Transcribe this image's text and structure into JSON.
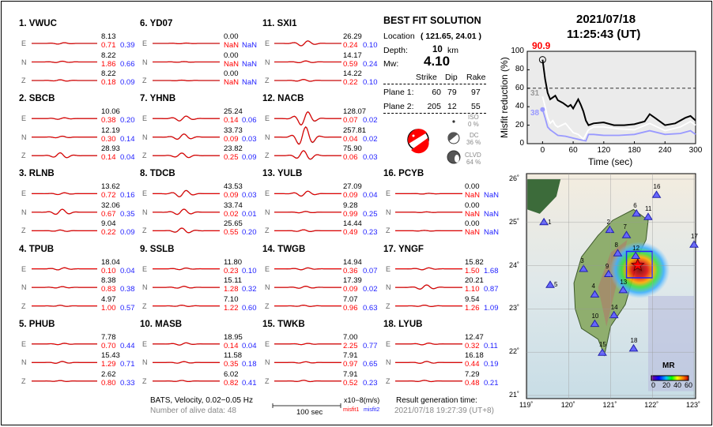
{
  "stations": [
    {
      "label": "1.  VWUC",
      "comps": [
        {
          "c": "E",
          "amp": "8.13",
          "m1": "0.71",
          "m2": "0.39"
        },
        {
          "c": "N",
          "amp": "8.22",
          "m1": "1.86",
          "m2": "0.66"
        },
        {
          "c": "Z",
          "amp": "8.22",
          "m1": "0.18",
          "m2": "0.09"
        }
      ]
    },
    {
      "label": "2.  SBCB",
      "comps": [
        {
          "c": "E",
          "amp": "10.06",
          "m1": "0.38",
          "m2": "0.20"
        },
        {
          "c": "N",
          "amp": "12.19",
          "m1": "0.30",
          "m2": "0.14"
        },
        {
          "c": "Z",
          "amp": "28.93",
          "m1": "0.14",
          "m2": "0.04"
        }
      ]
    },
    {
      "label": "3.  RLNB",
      "comps": [
        {
          "c": "E",
          "amp": "13.62",
          "m1": "0.72",
          "m2": "0.16"
        },
        {
          "c": "N",
          "amp": "32.06",
          "m1": "0.67",
          "m2": "0.35"
        },
        {
          "c": "Z",
          "amp": "9.04",
          "m1": "0.22",
          "m2": "0.09"
        }
      ]
    },
    {
      "label": "4.  TPUB",
      "comps": [
        {
          "c": "E",
          "amp": "18.04",
          "m1": "0.10",
          "m2": "0.04"
        },
        {
          "c": "N",
          "amp": "8.38",
          "m1": "0.83",
          "m2": "0.38"
        },
        {
          "c": "Z",
          "amp": "4.97",
          "m1": "1.00",
          "m2": "0.57"
        }
      ]
    },
    {
      "label": "5.  PHUB",
      "comps": [
        {
          "c": "E",
          "amp": "7.78",
          "m1": "0.70",
          "m2": "0.44"
        },
        {
          "c": "N",
          "amp": "15.43",
          "m1": "1.29",
          "m2": "0.71"
        },
        {
          "c": "Z",
          "amp": "2.62",
          "m1": "0.80",
          "m2": "0.33"
        }
      ]
    },
    {
      "label": "6.  YD07",
      "comps": [
        {
          "c": "E",
          "amp": "0.00",
          "m1": "NaN",
          "m2": "NaN"
        },
        {
          "c": "N",
          "amp": "0.00",
          "m1": "NaN",
          "m2": "NaN"
        },
        {
          "c": "Z",
          "amp": "0.00",
          "m1": "NaN",
          "m2": "NaN"
        }
      ]
    },
    {
      "label": "7.  YHNB",
      "comps": [
        {
          "c": "E",
          "amp": "25.24",
          "m1": "0.14",
          "m2": "0.06"
        },
        {
          "c": "N",
          "amp": "33.73",
          "m1": "0.09",
          "m2": "0.03"
        },
        {
          "c": "Z",
          "amp": "23.82",
          "m1": "0.25",
          "m2": "0.09"
        }
      ]
    },
    {
      "label": "8.  TDCB",
      "comps": [
        {
          "c": "E",
          "amp": "43.53",
          "m1": "0.09",
          "m2": "0.03"
        },
        {
          "c": "N",
          "amp": "33.74",
          "m1": "0.02",
          "m2": "0.01"
        },
        {
          "c": "Z",
          "amp": "25.65",
          "m1": "0.55",
          "m2": "0.20"
        }
      ]
    },
    {
      "label": "9.  SSLB",
      "comps": [
        {
          "c": "E",
          "amp": "11.80",
          "m1": "0.23",
          "m2": "0.10"
        },
        {
          "c": "N",
          "amp": "15.11",
          "m1": "1.28",
          "m2": "0.32"
        },
        {
          "c": "Z",
          "amp": "7.10",
          "m1": "1.22",
          "m2": "0.60"
        }
      ]
    },
    {
      "label": "10. MASB",
      "comps": [
        {
          "c": "E",
          "amp": "18.95",
          "m1": "0.14",
          "m2": "0.04"
        },
        {
          "c": "N",
          "amp": "11.58",
          "m1": "0.35",
          "m2": "0.18"
        },
        {
          "c": "Z",
          "amp": "6.02",
          "m1": "0.82",
          "m2": "0.41"
        }
      ]
    },
    {
      "label": "11. SXI1",
      "comps": [
        {
          "c": "E",
          "amp": "26.29",
          "m1": "0.24",
          "m2": "0.10"
        },
        {
          "c": "N",
          "amp": "14.17",
          "m1": "0.59",
          "m2": "0.24"
        },
        {
          "c": "Z",
          "amp": "14.22",
          "m1": "0.22",
          "m2": "0.10"
        }
      ]
    },
    {
      "label": "12. NACB",
      "comps": [
        {
          "c": "E",
          "amp": "128.07",
          "m1": "0.07",
          "m2": "0.02"
        },
        {
          "c": "N",
          "amp": "257.81",
          "m1": "0.04",
          "m2": "0.02"
        },
        {
          "c": "Z",
          "amp": "75.90",
          "m1": "0.06",
          "m2": "0.03"
        }
      ]
    },
    {
      "label": "13. YULB",
      "comps": [
        {
          "c": "E",
          "amp": "27.09",
          "m1": "0.09",
          "m2": "0.04"
        },
        {
          "c": "N",
          "amp": "9.28",
          "m1": "0.99",
          "m2": "0.25"
        },
        {
          "c": "Z",
          "amp": "14.44",
          "m1": "0.49",
          "m2": "0.23"
        }
      ]
    },
    {
      "label": "14. TWGB",
      "comps": [
        {
          "c": "E",
          "amp": "14.94",
          "m1": "0.36",
          "m2": "0.07"
        },
        {
          "c": "N",
          "amp": "17.39",
          "m1": "0.09",
          "m2": "0.02"
        },
        {
          "c": "Z",
          "amp": "7.07",
          "m1": "0.96",
          "m2": "0.63"
        }
      ]
    },
    {
      "label": "15. TWKB",
      "comps": [
        {
          "c": "E",
          "amp": "7.00",
          "m1": "2.25",
          "m2": "0.77"
        },
        {
          "c": "N",
          "amp": "7.91",
          "m1": "0.97",
          "m2": "0.65"
        },
        {
          "c": "Z",
          "amp": "7.91",
          "m1": "0.52",
          "m2": "0.23"
        }
      ]
    },
    {
      "label": "16. PCYB",
      "comps": [
        {
          "c": "E",
          "amp": "0.00",
          "m1": "NaN",
          "m2": "NaN"
        },
        {
          "c": "N",
          "amp": "0.00",
          "m1": "NaN",
          "m2": "NaN"
        },
        {
          "c": "Z",
          "amp": "0.00",
          "m1": "NaN",
          "m2": "NaN"
        }
      ]
    },
    {
      "label": "17. YNGF",
      "comps": [
        {
          "c": "E",
          "amp": "15.82",
          "m1": "1.50",
          "m2": "1.68"
        },
        {
          "c": "N",
          "amp": "20.21",
          "m1": "1.10",
          "m2": "0.87"
        },
        {
          "c": "Z",
          "amp": "9.54",
          "m1": "1.26",
          "m2": "1.09"
        }
      ]
    },
    {
      "label": "18. LYUB",
      "comps": [
        {
          "c": "E",
          "amp": "12.47",
          "m1": "0.32",
          "m2": "0.11"
        },
        {
          "c": "N",
          "amp": "16.18",
          "m1": "0.44",
          "m2": "0.19"
        },
        {
          "c": "Z",
          "amp": "7.29",
          "m1": "0.48",
          "m2": "0.21"
        }
      ]
    }
  ],
  "solution": {
    "title": "BEST FIT SOLUTION",
    "location_label": "Location",
    "location_value": "( 121.65,  24.01 )",
    "depth_label": "Depth:",
    "depth_value": "10",
    "depth_unit": "km",
    "mw_label": "Mw:",
    "mw_value": "4.10",
    "headers": [
      "Strike",
      "Dip",
      "Rake"
    ],
    "planes": [
      {
        "label": "Plane 1:",
        "values": [
          "60",
          "79",
          "97"
        ]
      },
      {
        "label": "Plane 2:",
        "values": [
          "205",
          "12",
          "55"
        ]
      }
    ],
    "iso_label": "ISO",
    "iso_value": "0 %",
    "dc_label": "DC",
    "dc_value": "36 %",
    "clvd_label": "CLVD",
    "clvd_value": "64 %"
  },
  "footer": {
    "filter": "BATS, Velocity, 0.02−0.05 Hz",
    "alive": "Number of alive data: 48",
    "scale": "100 sec",
    "units": "x10−8(m/s)",
    "misfit1": "misfit1",
    "misfit2": "misfit2",
    "gen_label": "Result generation time:",
    "gen_time": "2021/07/18 19:27:39 (UT+8)"
  },
  "header": {
    "date": "2021/07/18",
    "time": "11:25:43  (UT)"
  },
  "colors": {
    "synthetic": "#ff0000",
    "observed": "#000000",
    "misfit2": "#2222ff",
    "best_line": "#000000",
    "mid_line": "#ffffff",
    "low_line": "#9999ff"
  },
  "chart_data": {
    "type": "line",
    "xlabel": "Time (sec)",
    "ylabel": "Misfit reduction (%)",
    "xlim": [
      -30,
      300
    ],
    "ylim": [
      0,
      100
    ],
    "xticks": [
      "0",
      "60",
      "120",
      "180",
      "240",
      "300"
    ],
    "yticks": [
      "0",
      "20",
      "40",
      "60",
      "80",
      "100"
    ],
    "threshold": 60,
    "peak_label": "90.9",
    "annotations": [
      "31",
      "38"
    ],
    "series": [
      {
        "x": [
          0,
          5,
          10,
          15,
          20,
          25,
          30,
          40,
          50,
          55,
          60,
          70,
          75,
          80,
          85,
          90,
          100,
          120,
          140,
          160,
          180,
          200,
          210,
          220,
          240,
          260,
          280,
          290,
          300
        ],
        "y": [
          90.9,
          70,
          55,
          48,
          50,
          52,
          47,
          44,
          40,
          42,
          38,
          48,
          42,
          35,
          25,
          20,
          22,
          23,
          20,
          20,
          21,
          24,
          32,
          28,
          20,
          22,
          28,
          30,
          25
        ]
      },
      {
        "x": [
          0,
          5,
          10,
          15,
          20,
          25,
          30,
          45,
          60,
          70,
          80,
          90,
          100,
          120,
          150,
          180,
          210,
          240,
          270,
          290,
          300
        ],
        "y": [
          51,
          40,
          28,
          22,
          25,
          20,
          18,
          22,
          12,
          10,
          5,
          15,
          18,
          18,
          16,
          15,
          22,
          14,
          18,
          24,
          20
        ]
      },
      {
        "x": [
          0,
          5,
          10,
          15,
          20,
          30,
          45,
          60,
          75,
          85,
          90,
          100,
          120,
          150,
          180,
          210,
          240,
          270,
          290,
          300
        ],
        "y": [
          37,
          28,
          18,
          15,
          13,
          9,
          8,
          6,
          4,
          3,
          10,
          10,
          9,
          9,
          10,
          14,
          10,
          11,
          14,
          10
        ]
      }
    ]
  },
  "map": {
    "lon_ticks": [
      "119˚",
      "120˚",
      "121˚",
      "122˚",
      "123˚"
    ],
    "lat_ticks": [
      "21˚",
      "22˚",
      "23˚",
      "24˚",
      "25˚",
      "26˚"
    ],
    "colorbar_title": "MR",
    "colorbar_ticks": [
      "0",
      "20",
      "40",
      "60"
    ],
    "stations": [
      {
        "id": "1",
        "lon": 119.4,
        "lat": 25.0
      },
      {
        "id": "2",
        "lon": 120.98,
        "lat": 24.82
      },
      {
        "id": "3",
        "lon": 120.35,
        "lat": 23.92
      },
      {
        "id": "4",
        "lon": 120.62,
        "lat": 23.33
      },
      {
        "id": "5",
        "lon": 119.55,
        "lat": 23.55
      },
      {
        "id": "6",
        "lon": 121.62,
        "lat": 25.2
      },
      {
        "id": "7",
        "lon": 121.38,
        "lat": 24.7
      },
      {
        "id": "8",
        "lon": 121.17,
        "lat": 24.28
      },
      {
        "id": "9",
        "lon": 120.95,
        "lat": 23.8
      },
      {
        "id": "10",
        "lon": 120.62,
        "lat": 22.65
      },
      {
        "id": "11",
        "lon": 121.9,
        "lat": 25.12
      },
      {
        "id": "12",
        "lon": 121.6,
        "lat": 24.22
      },
      {
        "id": "13",
        "lon": 121.3,
        "lat": 23.43
      },
      {
        "id": "14",
        "lon": 121.08,
        "lat": 22.85
      },
      {
        "id": "15",
        "lon": 120.8,
        "lat": 21.98
      },
      {
        "id": "16",
        "lon": 122.1,
        "lat": 25.63
      },
      {
        "id": "17",
        "lon": 123.0,
        "lat": 24.48
      },
      {
        "id": "18",
        "lon": 121.55,
        "lat": 22.08
      }
    ],
    "epicenter": {
      "lon": 121.65,
      "lat": 24.01
    }
  }
}
